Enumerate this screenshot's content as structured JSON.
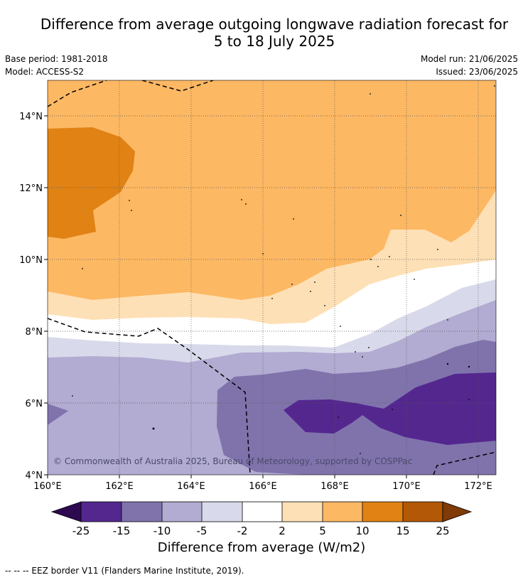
{
  "title_line1": "Difference from average outgoing longwave radiation forecast for",
  "title_line2": "5 to 18 July 2025",
  "base_period": "Base period: 1981-2018",
  "model": "Model: ACCESS-S2",
  "model_run": "Model run: 21/06/2025",
  "issued": "Issued: 23/06/2025",
  "x_ticks": [
    "160°E",
    "162°E",
    "164°E",
    "166°E",
    "168°E",
    "170°E",
    "172°E"
  ],
  "y_ticks": [
    "14°N",
    "12°N",
    "10°N",
    "8°N",
    "6°N",
    "4°N"
  ],
  "copyright": "© Commonwealth of Australia 2025, Bureau of Meteorology, supported by COSPPac",
  "colorbar": {
    "label": "Difference from average (W/m2)",
    "ticks": [
      "-25",
      "-15",
      "-10",
      "-5",
      "-2",
      "2",
      "5",
      "10",
      "15",
      "25"
    ],
    "colors": {
      "below_-25": "#2d0a50",
      "-25_-15": "#54278f",
      "-15_-10": "#8073ac",
      "-10_-5": "#b2abd2",
      "-5_-2": "#d8daeb",
      "-2_2": "#ffffff",
      "2_5": "#fee0b6",
      "5_10": "#fdb863",
      "10_15": "#e08214",
      "15_25": "#b35806",
      "above_25": "#7f3b08"
    }
  },
  "footnote": "--  --  -- EEZ border V11 (Flanders Marine Institute, 2019)."
}
